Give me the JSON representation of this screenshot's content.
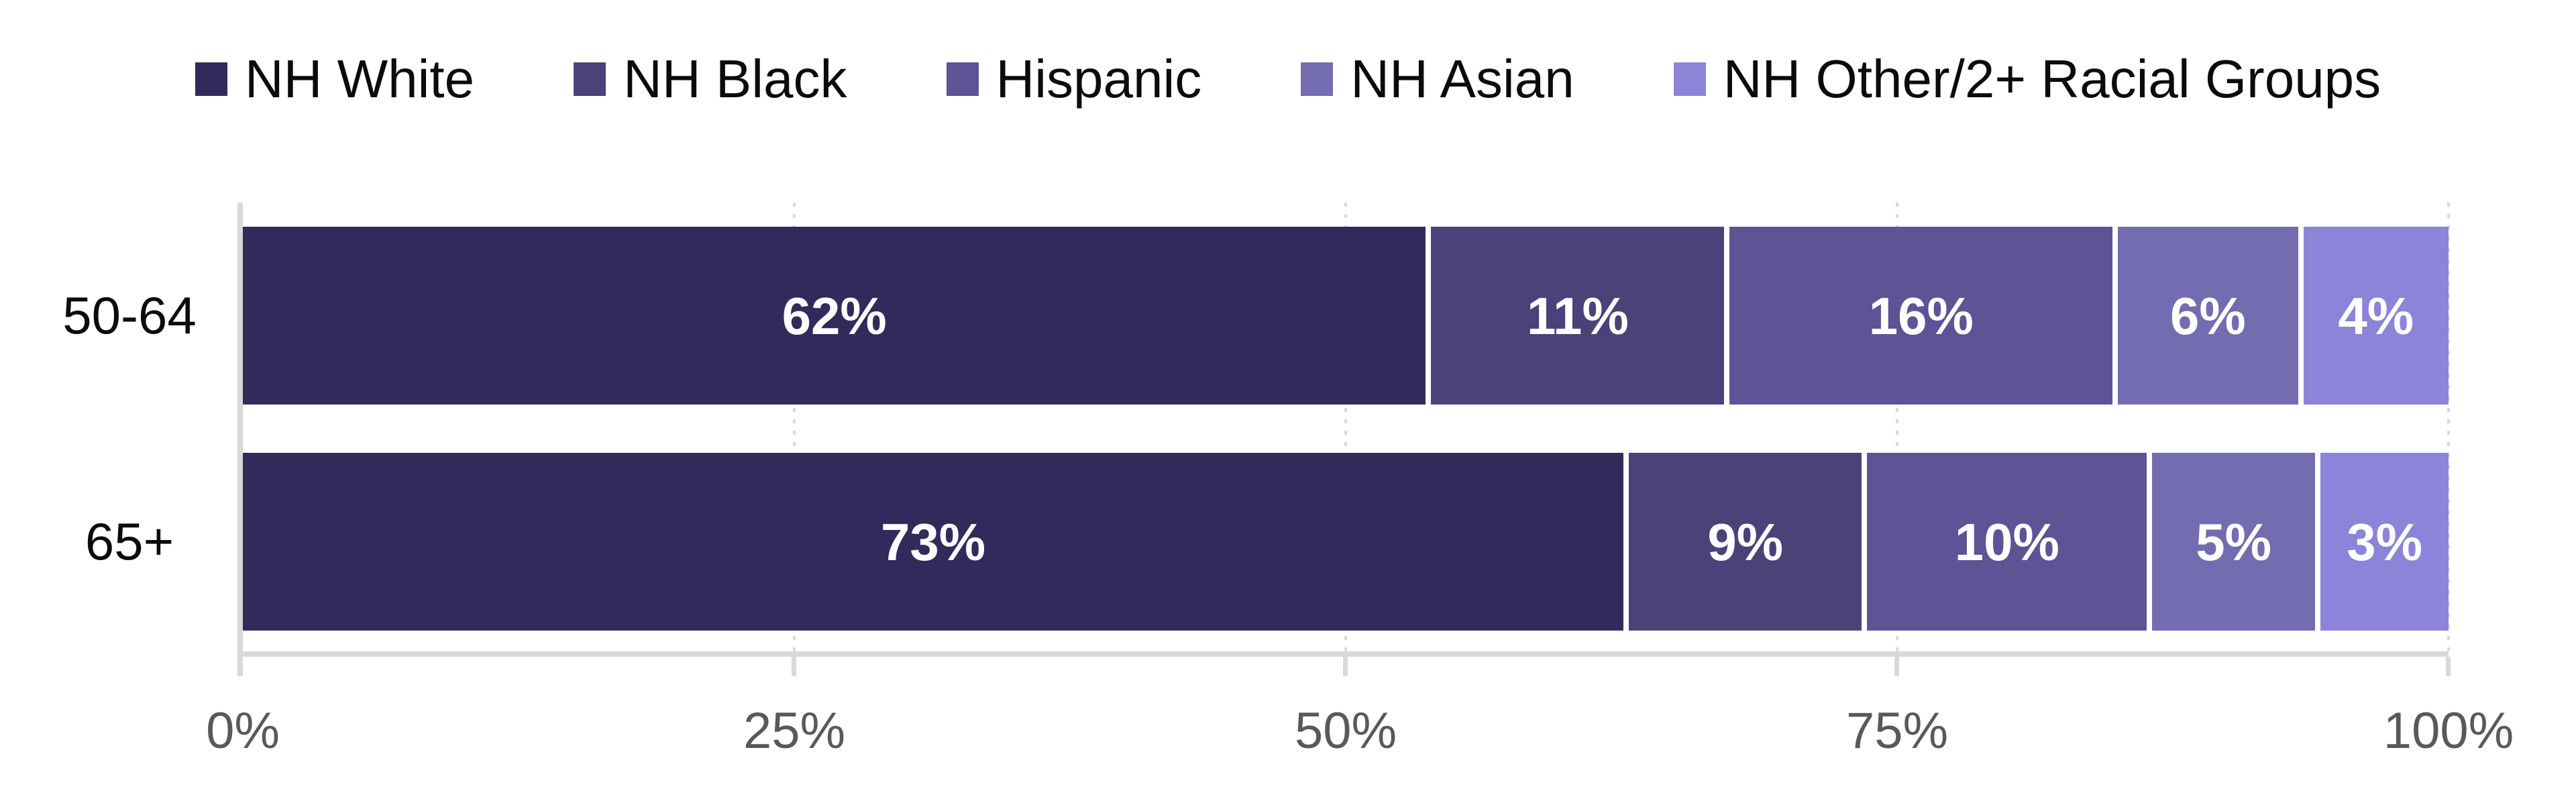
{
  "chart_data": {
    "type": "bar",
    "orientation": "horizontal",
    "stacked": true,
    "units": "percent",
    "title": "",
    "xlabel": "",
    "ylabel": "",
    "categories": [
      "50-64",
      "65+"
    ],
    "series": [
      {
        "name": "NH White",
        "color": "#312B5C",
        "values": [
          62,
          73
        ],
        "labels": [
          "62%",
          "73%"
        ]
      },
      {
        "name": "NH Black",
        "color": "#4A4278",
        "values": [
          11,
          9
        ],
        "labels": [
          "11%",
          "9%"
        ]
      },
      {
        "name": "Hispanic",
        "color": "#5C5494",
        "values": [
          16,
          10
        ],
        "labels": [
          "16%",
          "10%"
        ]
      },
      {
        "name": "NH Asian",
        "color": "#746CB0",
        "values": [
          6,
          5
        ],
        "labels": [
          "6%",
          "5%"
        ]
      },
      {
        "name": "NH Other/2+ Racial Groups",
        "color": "#8C84D8",
        "values": [
          4,
          3
        ],
        "labels": [
          "4%",
          "3%"
        ]
      }
    ],
    "x_axis": {
      "range": [
        0,
        100
      ],
      "tick_values": [
        0,
        25,
        50,
        75,
        100
      ],
      "tick_labels": [
        "0%",
        "25%",
        "50%",
        "75%",
        "100%"
      ],
      "gridlines": "dotted",
      "gridline_tick_values": [
        25,
        50,
        75,
        100
      ]
    },
    "legend_position": "top",
    "colors": {
      "value_label": "#FFFFFF",
      "axis_label": "#595959",
      "axis_line": "#D9D9D9",
      "category_label": "#0B0B0B",
      "legend_label": "#0B0B0B",
      "background": "#FFFFFF"
    }
  }
}
